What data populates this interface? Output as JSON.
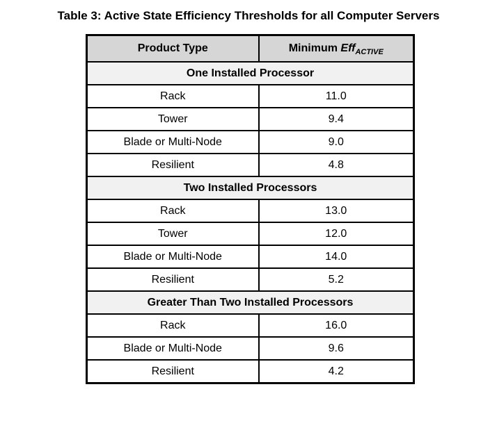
{
  "page": {
    "title": "Table 3: Active State Efficiency Thresholds for all Computer Servers"
  },
  "table": {
    "header": {
      "product_type_label": "Product Type",
      "min_eff_prefix": "Minimum ",
      "min_eff_term": "Eff",
      "min_eff_subscript": "ACTIVE"
    },
    "sections": [
      {
        "label": "One Installed Processor",
        "rows": [
          {
            "product_type": "Rack",
            "min_eff": "11.0"
          },
          {
            "product_type": "Tower",
            "min_eff": "9.4"
          },
          {
            "product_type": "Blade or Multi-Node",
            "min_eff": "9.0"
          },
          {
            "product_type": "Resilient",
            "min_eff": "4.8"
          }
        ]
      },
      {
        "label": "Two Installed Processors",
        "rows": [
          {
            "product_type": "Rack",
            "min_eff": "13.0"
          },
          {
            "product_type": "Tower",
            "min_eff": "12.0"
          },
          {
            "product_type": "Blade or Multi-Node",
            "min_eff": "14.0"
          },
          {
            "product_type": "Resilient",
            "min_eff": "5.2"
          }
        ]
      },
      {
        "label": "Greater Than Two Installed Processors",
        "rows": [
          {
            "product_type": "Rack",
            "min_eff": "16.0"
          },
          {
            "product_type": "Blade or Multi-Node",
            "min_eff": "9.6"
          },
          {
            "product_type": "Resilient",
            "min_eff": "4.2"
          }
        ]
      }
    ]
  },
  "colors": {
    "background": "#ffffff",
    "text": "#000000",
    "border": "#000000",
    "header_bg": "#d6d6d6",
    "section_bg": "#f1f1f1"
  }
}
